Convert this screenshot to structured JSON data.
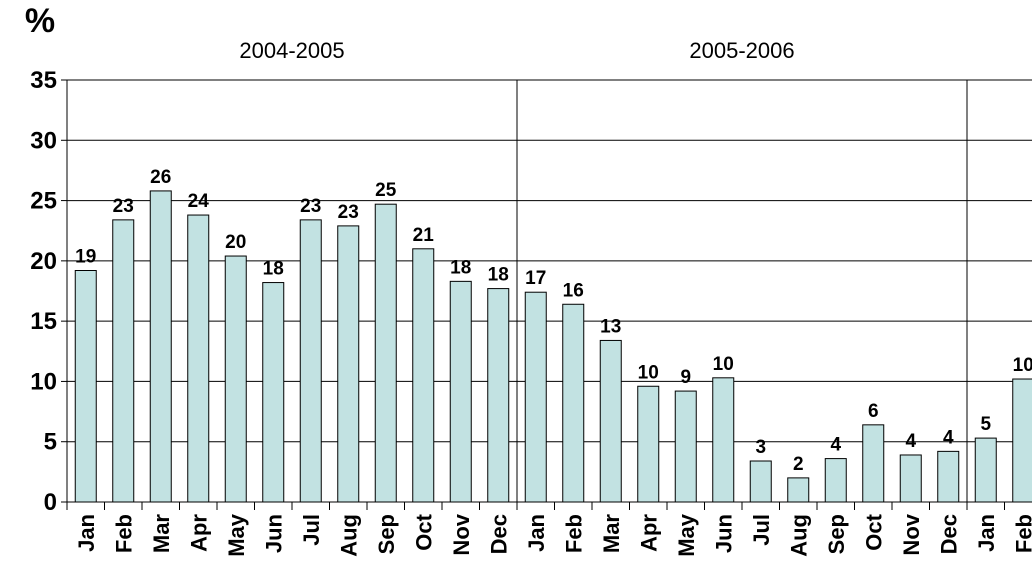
{
  "chart_data": {
    "type": "bar",
    "y_label": "%",
    "groups": [
      "2004-2005",
      "2005-2006"
    ],
    "categories": [
      "Jan",
      "Feb",
      "Mar",
      "Apr",
      "May",
      "Jun",
      "Jul",
      "Aug",
      "Sep",
      "Oct",
      "Nov",
      "Dec",
      "Jan",
      "Feb",
      "Mar",
      "Apr",
      "May",
      "Jun",
      "Jul",
      "Aug",
      "Sep",
      "Oct",
      "Nov",
      "Dec",
      "Jan",
      "Feb"
    ],
    "values": [
      19.2,
      23.4,
      25.8,
      23.8,
      20.4,
      18.2,
      23.4,
      22.9,
      24.7,
      21.0,
      18.3,
      17.7,
      17.4,
      16.4,
      13.4,
      9.6,
      9.2,
      10.3,
      3.4,
      2.0,
      3.6,
      6.4,
      3.9,
      4.2,
      5.3,
      10.2
    ],
    "value_labels": [
      "19",
      "23",
      "26",
      "24",
      "20",
      "18",
      "23",
      "23",
      "25",
      "21",
      "18",
      "18",
      "17",
      "16",
      "13",
      "10",
      "9",
      "10",
      "3",
      "2",
      "4",
      "6",
      "4",
      "4",
      "5",
      "10"
    ],
    "color": "#c2e2e2",
    "ylim": [
      0,
      35
    ],
    "yticks": [
      0,
      5,
      10,
      15,
      20,
      25,
      30,
      35
    ],
    "grid": true
  }
}
